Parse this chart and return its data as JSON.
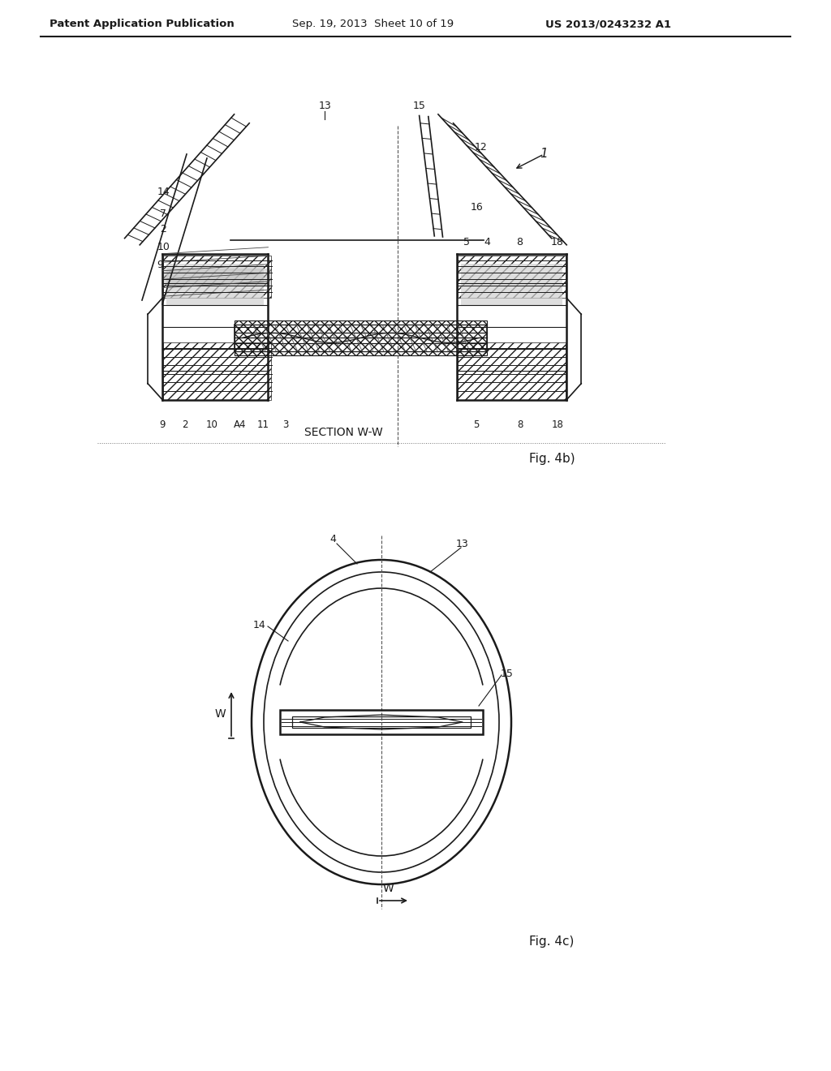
{
  "bg_color": "#ffffff",
  "header_text": "Patent Application Publication",
  "header_date": "Sep. 19, 2013  Sheet 10 of 19",
  "header_patent": "US 2013/0243232 A1",
  "fig4b_label": "Fig. 4b)",
  "fig4c_label": "Fig. 4c)",
  "section_label": "SECTION W-W",
  "line_color": "#1a1a1a",
  "hatch_color": "#1a1a1a",
  "dot_line_color": "#888888"
}
